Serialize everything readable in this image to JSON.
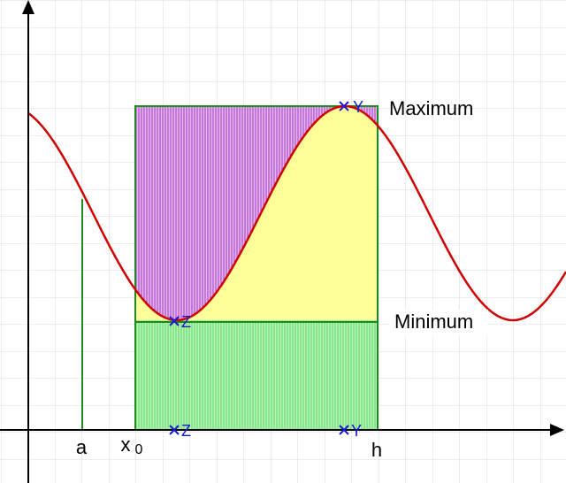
{
  "labels": {
    "maximum": "Maximum",
    "minimum": "Minimum",
    "a": "a",
    "x": "x",
    "x_sub": "0",
    "h": "h"
  },
  "points": [
    {
      "label": "Y"
    },
    {
      "label": "Z"
    },
    {
      "label": "Z"
    },
    {
      "label": "Y"
    }
  ]
}
